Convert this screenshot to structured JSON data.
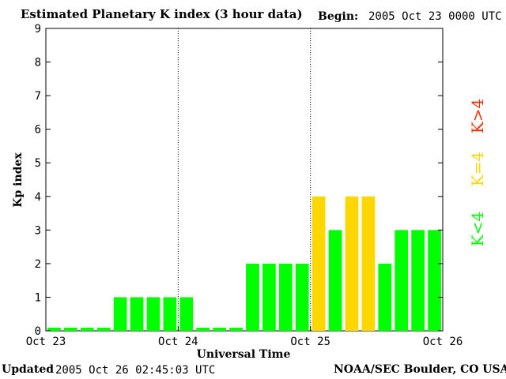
{
  "header": {
    "title": "Estimated Planetary K index (3 hour data)",
    "begin_label": "Begin:",
    "begin_value": "2005 Oct 23 0000 UTC"
  },
  "footer": {
    "updated_label": "Updated",
    "updated_value": "2005 Oct 26 02:45:03 UTC",
    "credit": "NOAA/SEC Boulder, CO USA"
  },
  "colors": {
    "low": "#00ff00",
    "storm_threshold": "#ffd700",
    "high": "#ff2a00"
  },
  "chart_data": {
    "type": "bar",
    "title": "Estimated Planetary K index (3 hour data)",
    "xlabel": "Universal Time",
    "ylabel": "Kp index",
    "ylim": [
      0,
      9
    ],
    "yticks": [
      "0",
      "1",
      "2",
      "3",
      "4",
      "5",
      "6",
      "7",
      "8",
      "9"
    ],
    "xticks": [
      "Oct 23",
      "Oct 24",
      "Oct 25",
      "Oct 26"
    ],
    "grid": "dotted vertical lines at day boundaries",
    "values": [
      0,
      0,
      0,
      0,
      1,
      1,
      1,
      1,
      1,
      0,
      0,
      0,
      2,
      2,
      2,
      2,
      4,
      3,
      4,
      4,
      2,
      3,
      3,
      3
    ],
    "legend": [
      {
        "label": "K<4",
        "color": "#00ff00"
      },
      {
        "label": "K=4",
        "color": "#ffd700"
      },
      {
        "label": "K>4",
        "color": "#ff2a00"
      }
    ],
    "legend_position": "right"
  }
}
